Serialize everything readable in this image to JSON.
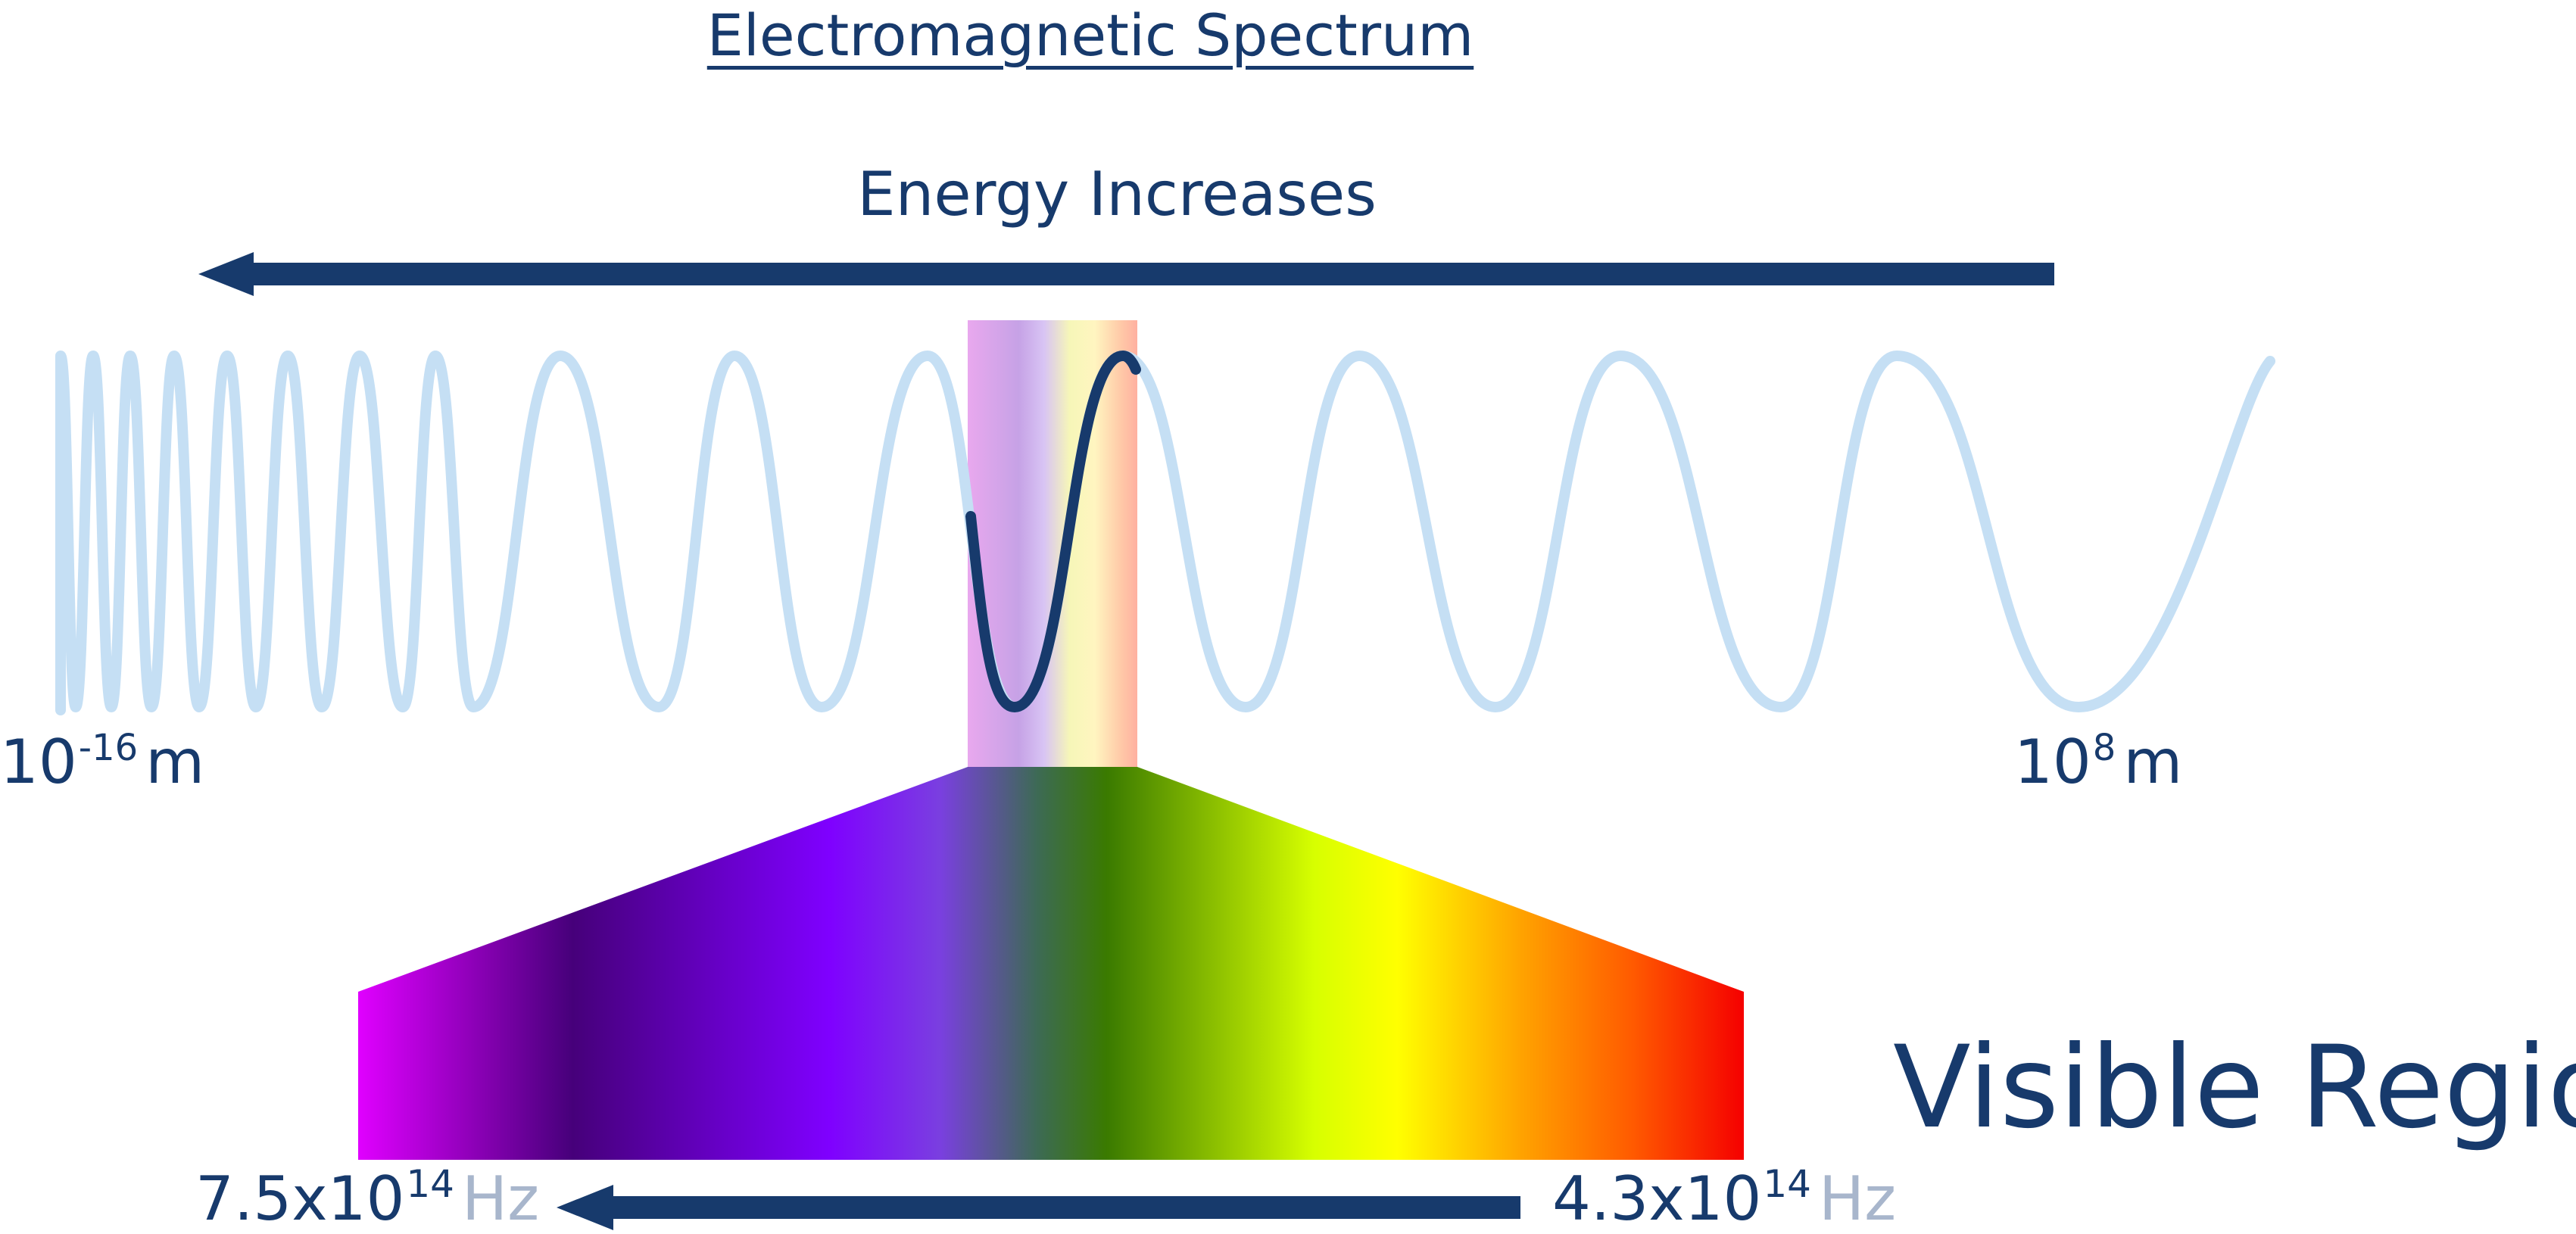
{
  "title": "Electromagnetic Spectrum",
  "energy_label": "Energy Increases",
  "scale": {
    "left": {
      "base": "10",
      "exp": "-16",
      "unit": "m"
    },
    "right": {
      "base": "10",
      "exp": "8",
      "unit": "m"
    }
  },
  "visible_label": "Visible Region",
  "frequency": {
    "left": {
      "base": "7.5x10",
      "exp": "14",
      "unit": "Hz"
    },
    "right": {
      "base": "4.3x10",
      "exp": "14",
      "unit": "Hz"
    }
  },
  "colors": {
    "text_dark": "#173a6c",
    "wave_light": "#c5dff4",
    "wave_dark": "#173a6c",
    "arrow": "#173a6c",
    "unit_gray": "#a8b6cc",
    "spectrum": [
      "#e000ff",
      "#46007a",
      "#7f00ff",
      "#7a3fe0",
      "#3d6a55",
      "#3a7a00",
      "#d7ff00",
      "#ffff00",
      "#ffa200",
      "#ff5a00",
      "#f50000"
    ]
  }
}
